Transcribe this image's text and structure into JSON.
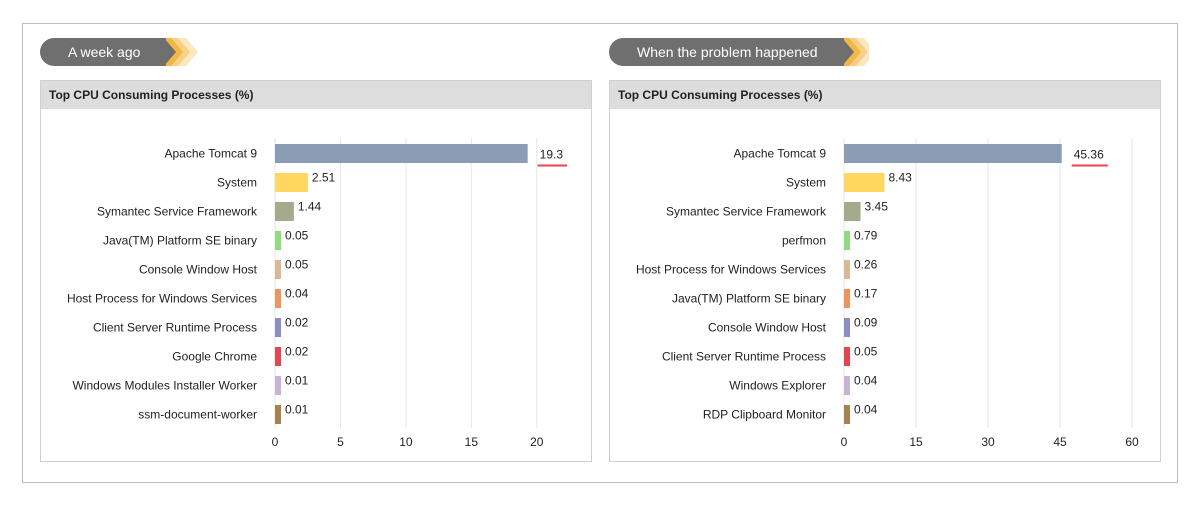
{
  "panels": [
    {
      "tag_label": "A week ago",
      "title": "Top CPU Consuming Processes (%)",
      "colors": {
        "tag": "#6f6f6f",
        "chev1": "#f4b73f",
        "chev2": "#f7d08a",
        "chev3": "#fbe6c0"
      }
    },
    {
      "tag_label": "When the problem happened",
      "title": "Top CPU Consuming Processes (%)",
      "colors": {
        "tag": "#6f6f6f",
        "chev1": "#f4b73f",
        "chev2": "#f7d08a",
        "chev3": "#fbe6c0"
      }
    }
  ],
  "chart_data": [
    {
      "type": "bar",
      "orientation": "horizontal",
      "title": "Top CPU Consuming Processes (%)",
      "categories": [
        "Apache Tomcat 9",
        "System",
        "Symantec Service Framework",
        "Java(TM) Platform SE binary",
        "Console Window Host",
        "Host Process for Windows Services",
        "Client Server Runtime Process",
        "Google Chrome",
        "Windows Modules Installer Worker",
        "ssm-document-worker"
      ],
      "values": [
        19.3,
        2.51,
        1.44,
        0.05,
        0.05,
        0.04,
        0.02,
        0.02,
        0.01,
        0.01
      ],
      "value_labels": [
        "19.3",
        "2.51",
        "1.44",
        "0.05",
        "0.05",
        "0.04",
        "0.02",
        "0.02",
        "0.01",
        "0.01"
      ],
      "colors": [
        "#8a9db5",
        "#ffd75e",
        "#a4ab8c",
        "#8fdc7e",
        "#d9b896",
        "#f1935c",
        "#8a8dc6",
        "#e8434f",
        "#c8b3d3",
        "#a8814f"
      ],
      "xlim": [
        0,
        22
      ],
      "xticks": [
        0,
        5,
        10,
        15,
        20
      ],
      "highlight_index": 0,
      "highlight_color": "#e8434f",
      "grid": true
    },
    {
      "type": "bar",
      "orientation": "horizontal",
      "title": "Top CPU Consuming Processes (%)",
      "categories": [
        "Apache Tomcat 9",
        "System",
        "Symantec Service Framework",
        "perfmon",
        "Host Process for Windows Services",
        "Java(TM) Platform SE binary",
        "Console Window Host",
        "Client Server Runtime Process",
        "Windows Explorer",
        "RDP Clipboard Monitor"
      ],
      "values": [
        45.36,
        8.43,
        3.45,
        0.79,
        0.26,
        0.17,
        0.09,
        0.05,
        0.04,
        0.04
      ],
      "value_labels": [
        "45.36",
        "8.43",
        "3.45",
        "0.79",
        "0.26",
        "0.17",
        "0.09",
        "0.05",
        "0.04",
        "0.04"
      ],
      "colors": [
        "#8a9db5",
        "#ffd75e",
        "#a4ab8c",
        "#8fdc7e",
        "#d9b896",
        "#f1935c",
        "#8a8dc6",
        "#e8434f",
        "#c8b3d3",
        "#a8814f"
      ],
      "xlim": [
        0,
        60
      ],
      "xticks": [
        0,
        15,
        30,
        45,
        60
      ],
      "highlight_index": 0,
      "highlight_color": "#e8434f",
      "grid": true
    }
  ]
}
